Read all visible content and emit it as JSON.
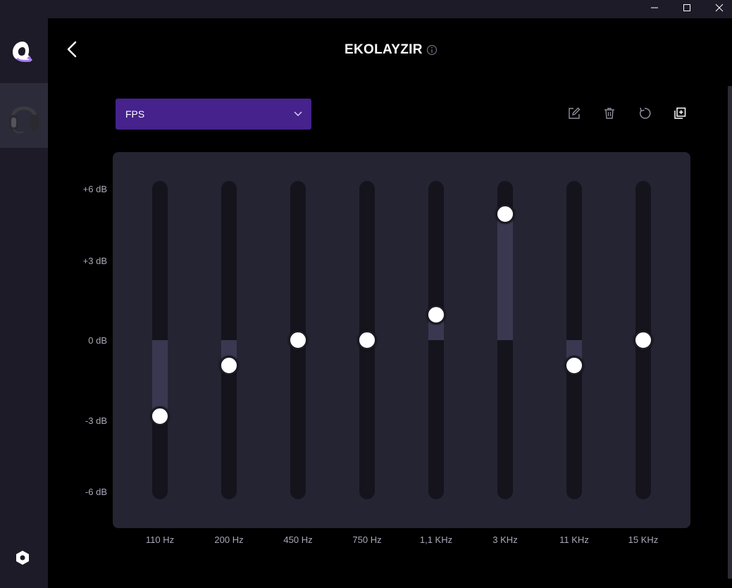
{
  "header": {
    "title": "EKOLAYZIR"
  },
  "icons": {
    "minimize": "minimize-icon",
    "maximize": "maximize-icon",
    "close": "close-icon",
    "back": "chevron-left-icon",
    "info": "info-icon",
    "edit": "edit-icon",
    "delete": "trash-icon",
    "reset": "reset-icon",
    "copy": "copy-add-icon",
    "settings": "hexagon-settings-icon",
    "device": "headset-icon"
  },
  "preset": {
    "selected": "FPS"
  },
  "colors": {
    "accent": "#45228c",
    "panel": "#252433",
    "sidebar": "#1c1b27"
  },
  "equalizer": {
    "range_db": [
      -6,
      6
    ],
    "db_labels": [
      "+6 dB",
      "+3 dB",
      "0 dB",
      "-3 dB",
      "-6 dB"
    ],
    "bands": [
      {
        "label": "110 Hz",
        "gain_db": -3
      },
      {
        "label": "200 Hz",
        "gain_db": -1
      },
      {
        "label": "450 Hz",
        "gain_db": 0
      },
      {
        "label": "750 Hz",
        "gain_db": 0
      },
      {
        "label": "1,1 KHz",
        "gain_db": 1
      },
      {
        "label": "3 KHz",
        "gain_db": 5
      },
      {
        "label": "11 KHz",
        "gain_db": -1
      },
      {
        "label": "15 KHz",
        "gain_db": 0
      }
    ]
  }
}
